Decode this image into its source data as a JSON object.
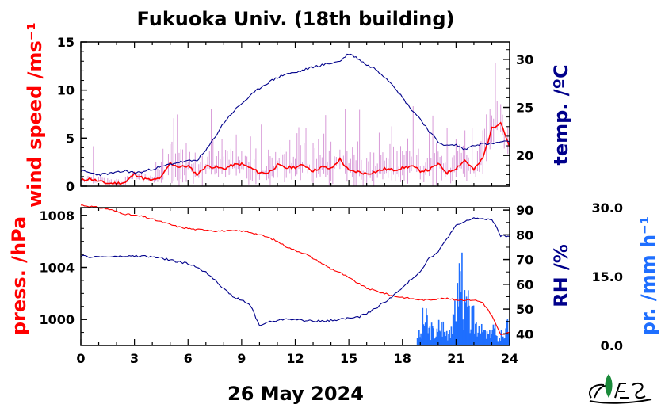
{
  "title": "Fukuoka Univ. (18th building)",
  "date_label": "26 May 2024",
  "colors": {
    "wind": "#ff0000",
    "wind_raw": "#d89ad8",
    "temp": "#00008b",
    "pressure": "#ff0000",
    "rh": "#00008b",
    "precip": "#1f6fff"
  },
  "chart_data": [
    {
      "type": "line",
      "panel": "top",
      "x_ticks": [
        "0",
        "3",
        "6",
        "9",
        "12",
        "15",
        "18",
        "21",
        "24"
      ],
      "xlim": [
        0,
        24
      ],
      "left_axis": {
        "label": "wind speed /ms⁻¹",
        "ylim": [
          0,
          15
        ],
        "ticks": [
          "0",
          "5",
          "10",
          "15"
        ]
      },
      "right_axis": {
        "label": "temp. /ºC",
        "ylim": [
          16.8,
          31.8
        ],
        "ticks": [
          "20",
          "25",
          "30"
        ]
      },
      "series": [
        {
          "axis": "left",
          "x": [
            0,
            0.5,
            1,
            1.5,
            2,
            2.5,
            3,
            3.5,
            4,
            4.5,
            5,
            5.5,
            6,
            6.5,
            7,
            7.5,
            8,
            8.5,
            9,
            9.5,
            10,
            10.5,
            11,
            11.5,
            12,
            12.5,
            13,
            13.5,
            14,
            14.5,
            15,
            15.5,
            16,
            16.5,
            17,
            17.5,
            18,
            18.5,
            19,
            19.5,
            20,
            20.5,
            21,
            21.5,
            22,
            22.5,
            23,
            23.5,
            24
          ],
          "values": [
            0.6,
            0.8,
            0.5,
            0.3,
            0.3,
            0.4,
            1.3,
            0.8,
            0.6,
            0.9,
            2.4,
            2.0,
            2.1,
            1.2,
            2.1,
            2.0,
            1.8,
            2.2,
            2.3,
            1.9,
            1.4,
            1.4,
            2.2,
            1.9,
            2.0,
            2.2,
            1.6,
            2.0,
            1.8,
            2.8,
            1.6,
            1.5,
            1.3,
            1.5,
            1.8,
            1.7,
            1.9,
            2.1,
            1.6,
            1.7,
            2.3,
            1.4,
            1.9,
            2.7,
            1.7,
            2.9,
            6.0,
            6.7,
            4.1
          ]
        },
        {
          "axis": "right",
          "x": [
            0,
            0.5,
            1,
            1.5,
            2,
            2.5,
            3,
            3.5,
            4,
            4.5,
            5,
            5.5,
            6,
            6.5,
            7,
            7.5,
            8,
            8.5,
            9,
            9.5,
            10,
            10.5,
            11,
            11.5,
            12,
            12.5,
            13,
            13.5,
            14,
            14.5,
            15,
            15.5,
            16,
            16.5,
            17,
            17.5,
            18,
            18.5,
            19,
            19.5,
            20,
            20.5,
            21,
            21.5,
            22,
            22.5,
            23,
            23.5,
            24
          ],
          "values": [
            18.4,
            18.2,
            18.0,
            18.1,
            18.2,
            18.4,
            18.2,
            18.3,
            18.6,
            18.8,
            19.1,
            19.3,
            19.4,
            19.5,
            20.5,
            21.9,
            23.4,
            24.5,
            25.4,
            26.2,
            27.0,
            27.6,
            28.1,
            28.5,
            28.6,
            28.9,
            29.2,
            29.4,
            29.6,
            29.8,
            30.6,
            30.1,
            29.4,
            29.0,
            28.2,
            27.3,
            26.0,
            24.8,
            23.8,
            22.5,
            21.4,
            21.0,
            21.1,
            20.6,
            21.1,
            21.2,
            21.2,
            21.4,
            21.4
          ]
        }
      ]
    },
    {
      "type": "line",
      "panel": "bottom",
      "x_ticks": [
        "0",
        "3",
        "6",
        "9",
        "12",
        "15",
        "18",
        "21",
        "24"
      ],
      "xlim": [
        0,
        24
      ],
      "left_axis": {
        "label": "press. /hPa",
        "ylim": [
          998.0,
          1008.6
        ],
        "ticks": [
          "1000",
          "1004",
          "1008"
        ]
      },
      "right_axis": {
        "label": "RH /%",
        "ylim": [
          35.3,
          91
        ],
        "ticks": [
          "40",
          "50",
          "60",
          "70",
          "80",
          "90"
        ]
      },
      "rain_axis": {
        "label": "pr. /mm h⁻¹",
        "ylim": [
          0,
          30
        ],
        "ticks": [
          "0.0",
          "15.0",
          "30.0"
        ]
      },
      "series": [
        {
          "axis": "left",
          "x": [
            0,
            0.5,
            1,
            1.5,
            2,
            2.5,
            3,
            3.5,
            4,
            4.5,
            5,
            5.5,
            6,
            6.5,
            7,
            7.5,
            8,
            8.5,
            9,
            9.5,
            10,
            10.5,
            11,
            11.5,
            12,
            12.5,
            13,
            13.5,
            14,
            14.5,
            15,
            15.5,
            16,
            16.5,
            17,
            17.5,
            18,
            18.5,
            19,
            19.5,
            20,
            20.5,
            21,
            21.5,
            22,
            22.5,
            23,
            23.5,
            24
          ],
          "values": [
            1008.8,
            1008.7,
            1008.6,
            1008.5,
            1008.3,
            1008.1,
            1008.0,
            1007.9,
            1007.7,
            1007.5,
            1007.3,
            1007.1,
            1007.0,
            1006.9,
            1006.9,
            1006.8,
            1006.8,
            1006.8,
            1006.8,
            1006.7,
            1006.5,
            1006.3,
            1006.0,
            1005.6,
            1005.3,
            1005.1,
            1004.7,
            1004.3,
            1003.9,
            1003.6,
            1003.2,
            1002.8,
            1002.4,
            1002.2,
            1002.0,
            1001.8,
            1001.7,
            1001.6,
            1001.5,
            1001.5,
            1001.6,
            1001.6,
            1001.5,
            1001.5,
            1001.5,
            1001.3,
            1000.3,
            998.8,
            999.0
          ]
        },
        {
          "axis": "right",
          "x": [
            0,
            0.5,
            1,
            1.5,
            2,
            2.5,
            3,
            3.5,
            4,
            4.5,
            5,
            5.5,
            6,
            6.5,
            7,
            7.5,
            8,
            8.5,
            9,
            9.5,
            10,
            10.5,
            11,
            11.5,
            12,
            12.5,
            13,
            13.5,
            14,
            14.5,
            15,
            15.5,
            16,
            16.5,
            17,
            17.5,
            18,
            18.5,
            19,
            19.5,
            20,
            20.5,
            21,
            21.5,
            22,
            22.5,
            23,
            23.5,
            24
          ],
          "values": [
            71.4,
            71.1,
            71.1,
            71.1,
            71.2,
            71.3,
            71.4,
            71.4,
            71.0,
            70.6,
            69.8,
            69.0,
            68.3,
            67.0,
            64.8,
            62.0,
            58.2,
            55.0,
            53.6,
            51.5,
            43.3,
            44.8,
            45.3,
            46.2,
            45.8,
            45.3,
            45.4,
            45.0,
            45.4,
            45.9,
            46.4,
            46.6,
            48.3,
            50.3,
            52.8,
            55.5,
            58.5,
            62.1,
            65.2,
            70.8,
            73.0,
            78.7,
            83.6,
            85.3,
            86.9,
            86.2,
            86.4,
            79.6,
            79.3
          ]
        },
        {
          "axis": "rain",
          "type": "bar",
          "x": [
            18.8,
            19.1,
            19.4,
            19.7,
            20.0,
            20.3,
            20.6,
            20.9,
            21.1,
            21.4,
            21.7,
            22.0,
            22.3,
            22.6,
            22.9,
            23.2,
            23.5,
            23.8
          ],
          "values": [
            3.0,
            7.0,
            4.5,
            3.5,
            5.5,
            4.0,
            6.0,
            12.5,
            20.5,
            10.5,
            7.5,
            6.5,
            4.0,
            3.0,
            5.0,
            2.0,
            3.5,
            5.0
          ]
        }
      ]
    }
  ]
}
